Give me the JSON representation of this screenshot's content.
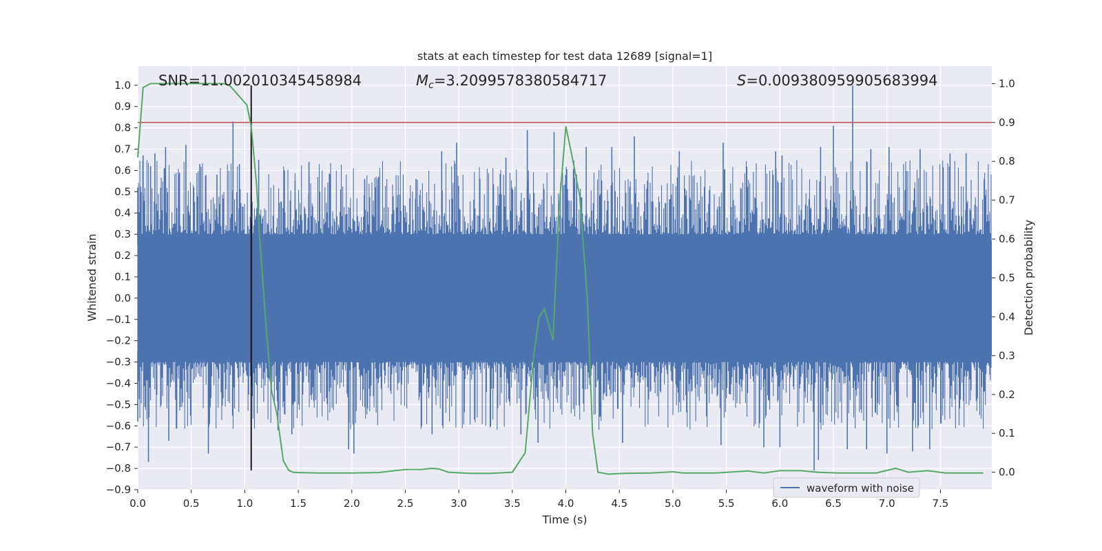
{
  "chart_data": {
    "type": "line",
    "title": "stats at each timestep for test data 12689 [signal=1]",
    "xlabel": "Time (s)",
    "ylabel": "Whitened strain",
    "y2label": "Detection probability",
    "xlim": [
      0.0,
      7.98
    ],
    "ylim": [
      -0.9,
      1.09
    ],
    "y2lim": [
      -0.045,
      1.045
    ],
    "xticks": [
      0.0,
      0.5,
      1.0,
      1.5,
      2.0,
      2.5,
      3.0,
      3.5,
      4.0,
      4.5,
      5.0,
      5.5,
      6.0,
      6.5,
      7.0,
      7.5
    ],
    "yticks": [
      1.0,
      0.9,
      0.8,
      0.7,
      0.6,
      0.5,
      0.4,
      0.3,
      0.2,
      0.1,
      0.0,
      -0.1,
      -0.2,
      -0.3,
      -0.4,
      -0.5,
      -0.6,
      -0.7,
      -0.8,
      -0.9
    ],
    "y2ticks": [
      1.0,
      0.9,
      0.8,
      0.7,
      0.6,
      0.5,
      0.4,
      0.3,
      0.2,
      0.1,
      0.0
    ],
    "grid": true,
    "legend": {
      "position": "lower-right",
      "entries": [
        "waveform with noise"
      ]
    },
    "annotations": {
      "snr": "SNR=11.002010345458984",
      "mc_symbol": "M",
      "mc_sub": "c",
      "mc_value": "=3.2099578380584717",
      "s_symbol": "S",
      "s_value": "=0.009380959905683994"
    },
    "threshold_probability": 0.9,
    "marker_time": 1.06,
    "series": [
      {
        "name": "waveform with noise",
        "axis": "left",
        "color": "#4c72b0",
        "description_dense_noise_envelope": {
          "core": [
            -0.27,
            0.27
          ]
        },
        "positive_peaks": [
          [
            0.0,
            0.52
          ],
          [
            0.05,
            0.67
          ],
          [
            0.12,
            0.62
          ],
          [
            0.16,
            0.68
          ],
          [
            0.25,
            0.61
          ],
          [
            0.26,
            0.71
          ],
          [
            0.39,
            0.59
          ],
          [
            0.45,
            0.72
          ],
          [
            0.58,
            0.63
          ],
          [
            0.74,
            0.58
          ],
          [
            0.89,
            0.83
          ],
          [
            0.95,
            0.63
          ],
          [
            1.13,
            0.65
          ],
          [
            1.37,
            0.6
          ],
          [
            1.47,
            0.55
          ],
          [
            1.6,
            0.64
          ],
          [
            2.12,
            0.56
          ],
          [
            2.25,
            0.57
          ],
          [
            2.6,
            0.56
          ],
          [
            2.84,
            0.69
          ],
          [
            2.98,
            0.73
          ],
          [
            3.44,
            0.66
          ],
          [
            3.64,
            0.79
          ],
          [
            3.89,
            0.78
          ],
          [
            4.1,
            0.58
          ],
          [
            4.19,
            0.71
          ],
          [
            4.43,
            0.71
          ],
          [
            4.64,
            0.76
          ],
          [
            5.06,
            0.69
          ],
          [
            5.47,
            0.73
          ],
          [
            5.96,
            0.69
          ],
          [
            6.02,
            0.67
          ],
          [
            6.38,
            0.71
          ],
          [
            6.5,
            0.81
          ],
          [
            6.68,
            1.0
          ],
          [
            6.85,
            0.7
          ],
          [
            7.02,
            0.71
          ],
          [
            7.31,
            0.7
          ],
          [
            7.59,
            0.68
          ],
          [
            7.74,
            0.68
          ]
        ],
        "negative_peaks": [
          [
            0.0,
            -0.58
          ],
          [
            0.1,
            -0.77
          ],
          [
            0.29,
            -0.67
          ],
          [
            0.66,
            -0.73
          ],
          [
            1.31,
            -0.62
          ],
          [
            1.44,
            -0.64
          ],
          [
            1.97,
            -0.71
          ],
          [
            2.02,
            -0.73
          ],
          [
            2.75,
            -0.64
          ],
          [
            3.58,
            -0.64
          ],
          [
            3.74,
            -0.68
          ],
          [
            4.53,
            -0.68
          ],
          [
            5.45,
            -0.69
          ],
          [
            5.85,
            -0.7
          ],
          [
            6.0,
            -0.7
          ],
          [
            6.32,
            -0.81
          ],
          [
            6.36,
            -0.76
          ],
          [
            6.63,
            -0.71
          ],
          [
            6.81,
            -0.71
          ],
          [
            7.0,
            -0.73
          ],
          [
            7.24,
            -0.72
          ],
          [
            7.4,
            -0.71
          ]
        ]
      },
      {
        "name": "",
        "axis": "right",
        "color": "#55a868",
        "x": [
          0.0,
          0.05,
          0.12,
          0.2,
          0.4,
          0.6,
          0.8,
          0.86,
          0.94,
          1.02,
          1.06,
          1.11,
          1.14,
          1.2,
          1.25,
          1.3,
          1.36,
          1.41,
          1.45,
          1.5,
          1.7,
          2.0,
          2.25,
          2.5,
          2.65,
          2.75,
          2.82,
          2.9,
          3.1,
          3.3,
          3.5,
          3.62,
          3.7,
          3.75,
          3.8,
          3.88,
          3.94,
          4.0,
          4.06,
          4.13,
          4.2,
          4.25,
          4.3,
          4.4,
          4.55,
          4.8,
          5.0,
          5.1,
          5.4,
          5.7,
          5.85,
          6.0,
          6.2,
          6.35,
          6.55,
          6.9,
          7.08,
          7.2,
          7.38,
          7.55,
          7.9
        ],
        "y": [
          0.81,
          0.99,
          1.0,
          1.0,
          1.0,
          1.0,
          1.0,
          0.995,
          0.97,
          0.945,
          0.89,
          0.74,
          0.6,
          0.37,
          0.21,
          0.15,
          0.03,
          0.005,
          0.0,
          -0.001,
          -0.002,
          -0.002,
          -0.001,
          0.007,
          0.007,
          0.01,
          0.008,
          0.0,
          -0.003,
          -0.003,
          0.0,
          0.05,
          0.3,
          0.4,
          0.42,
          0.34,
          0.69,
          0.89,
          0.81,
          0.71,
          0.45,
          0.1,
          0.0,
          -0.005,
          -0.003,
          -0.002,
          0.001,
          -0.002,
          -0.002,
          0.003,
          -0.002,
          0.004,
          0.004,
          0.0,
          -0.002,
          -0.002,
          0.01,
          0.0,
          0.004,
          -0.002,
          -0.002
        ]
      }
    ],
    "colors": {
      "axes_face": "#eaeaf2",
      "grid": "#ffffff",
      "threshold_line": "#c44e52",
      "marker_line": "#000000"
    }
  }
}
